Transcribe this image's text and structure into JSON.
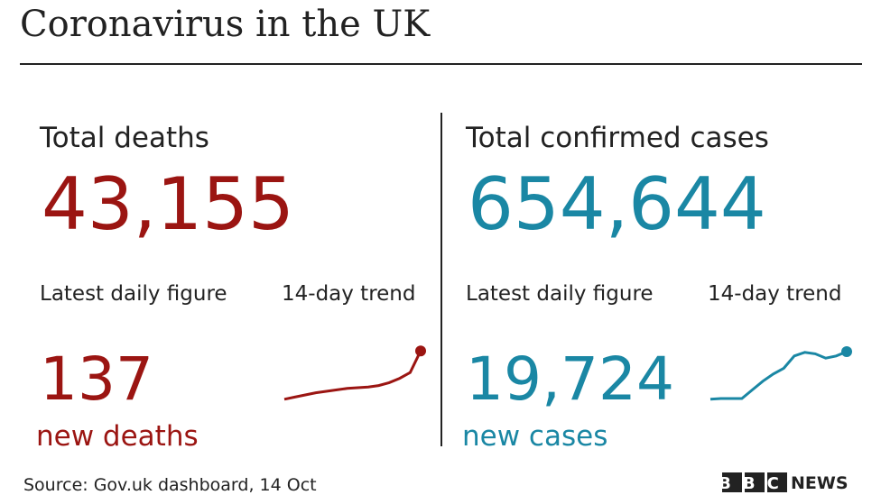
{
  "header": {
    "title": "Coronavirus in the UK"
  },
  "panels": [
    {
      "label": "Total deaths",
      "total": "43,155",
      "daily_label": "Latest daily figure",
      "trend_label": "14-day trend",
      "daily": "137",
      "daily_unit": "new deaths",
      "color": "#9b1512",
      "trend": {
        "values": [
          9,
          12,
          15,
          18,
          20,
          22,
          24,
          25,
          26,
          28,
          32,
          38,
          46,
          76
        ],
        "ylim": [
          0,
          100
        ]
      }
    },
    {
      "label": "Total confirmed cases",
      "total": "654,644",
      "daily_label": "Latest daily figure",
      "trend_label": "14-day trend",
      "daily": "19,724",
      "daily_unit": "new cases",
      "color": "#1a87a4",
      "trend": {
        "values": [
          9,
          10,
          10,
          10,
          22,
          34,
          44,
          52,
          69,
          74,
          72,
          66,
          69,
          75
        ],
        "ylim": [
          0,
          100
        ]
      }
    }
  ],
  "footer": {
    "source": "Source: Gov.uk dashboard, 14 Oct",
    "logo_bbc": "BBC",
    "logo_news": "NEWS"
  }
}
